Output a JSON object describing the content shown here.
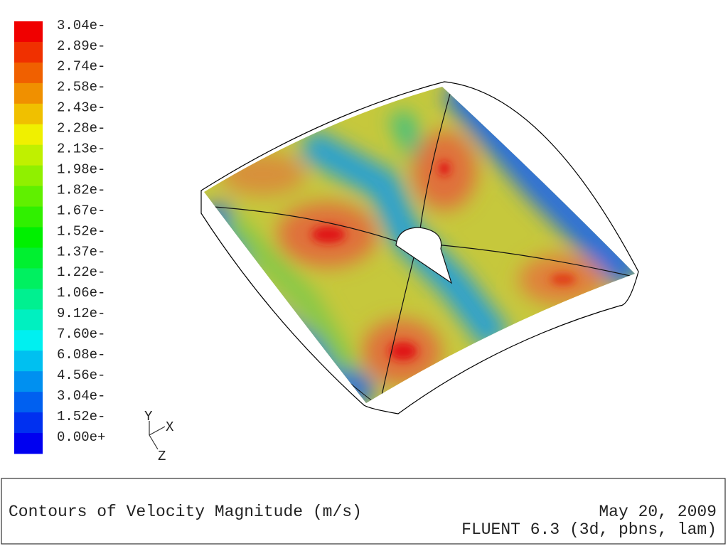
{
  "legend": {
    "labels": [
      "3.04e-",
      "2.89e-",
      "2.74e-",
      "2.58e-",
      "2.43e-",
      "2.28e-",
      "2.13e-",
      "1.98e-",
      "1.82e-",
      "1.67e-",
      "1.52e-",
      "1.37e-",
      "1.22e-",
      "1.06e-",
      "9.12e-",
      "7.60e-",
      "6.08e-",
      "4.56e-",
      "3.04e-",
      "1.52e-",
      "0.00e+"
    ]
  },
  "axes": {
    "y": "Y",
    "x": "X",
    "z": "Z"
  },
  "footer": {
    "title": "Contours of Velocity Magnitude (m/s)",
    "date": "May 20, 2009",
    "version": "FLUENT 6.3 (3d, pbns, lam)"
  }
}
